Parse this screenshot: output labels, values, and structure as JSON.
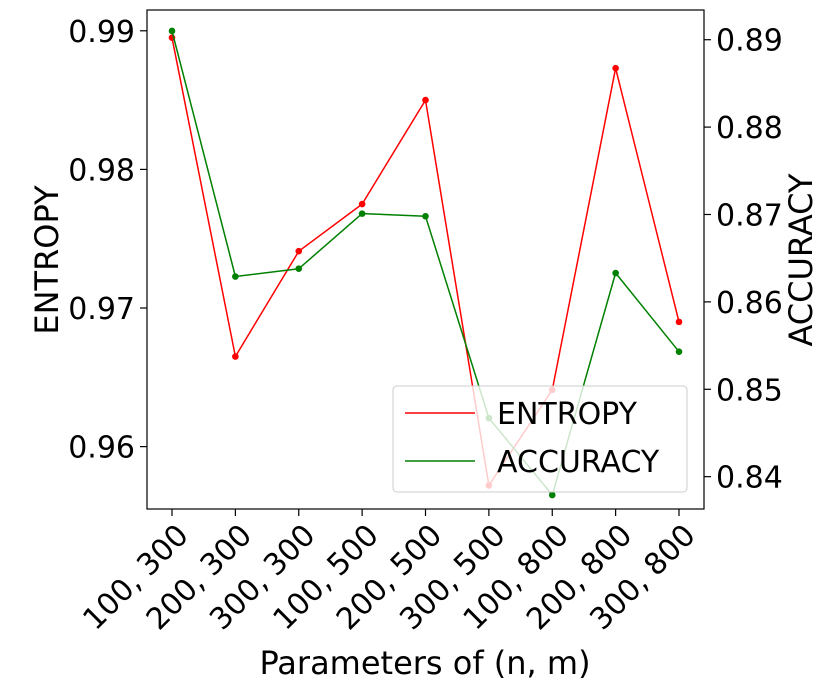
{
  "chart_data": {
    "type": "line",
    "xlabel": "Parameters of (n, m)",
    "categories": [
      "100, 300",
      "200, 300",
      "300, 300",
      "100, 500",
      "200, 500",
      "300, 500",
      "100, 800",
      "200, 800",
      "300, 800"
    ],
    "y_left": {
      "label": "ENTROPY",
      "lim": [
        0.9555,
        0.9915
      ],
      "ticks": [
        "0.96",
        "0.97",
        "0.98",
        "0.99"
      ]
    },
    "y_right": {
      "label": "ACCURACY",
      "lim": [
        0.8363,
        0.8934
      ],
      "ticks": [
        "0.84",
        "0.85",
        "0.86",
        "0.87",
        "0.88",
        "0.89"
      ]
    },
    "series": [
      {
        "name": "ENTROPY",
        "axis": "left",
        "color": "#ff0000",
        "values": [
          0.9895,
          0.9665,
          0.9741,
          0.9775,
          0.985,
          0.9572,
          0.9641,
          0.9873,
          0.969
        ]
      },
      {
        "name": "ACCURACY",
        "axis": "right",
        "color": "#008000",
        "values": [
          0.891,
          0.8629,
          0.8638,
          0.8701,
          0.8698,
          0.8467,
          0.8379,
          0.8633,
          0.8543
        ]
      }
    ],
    "legend": {
      "position": "lower-right"
    },
    "grid": false
  }
}
